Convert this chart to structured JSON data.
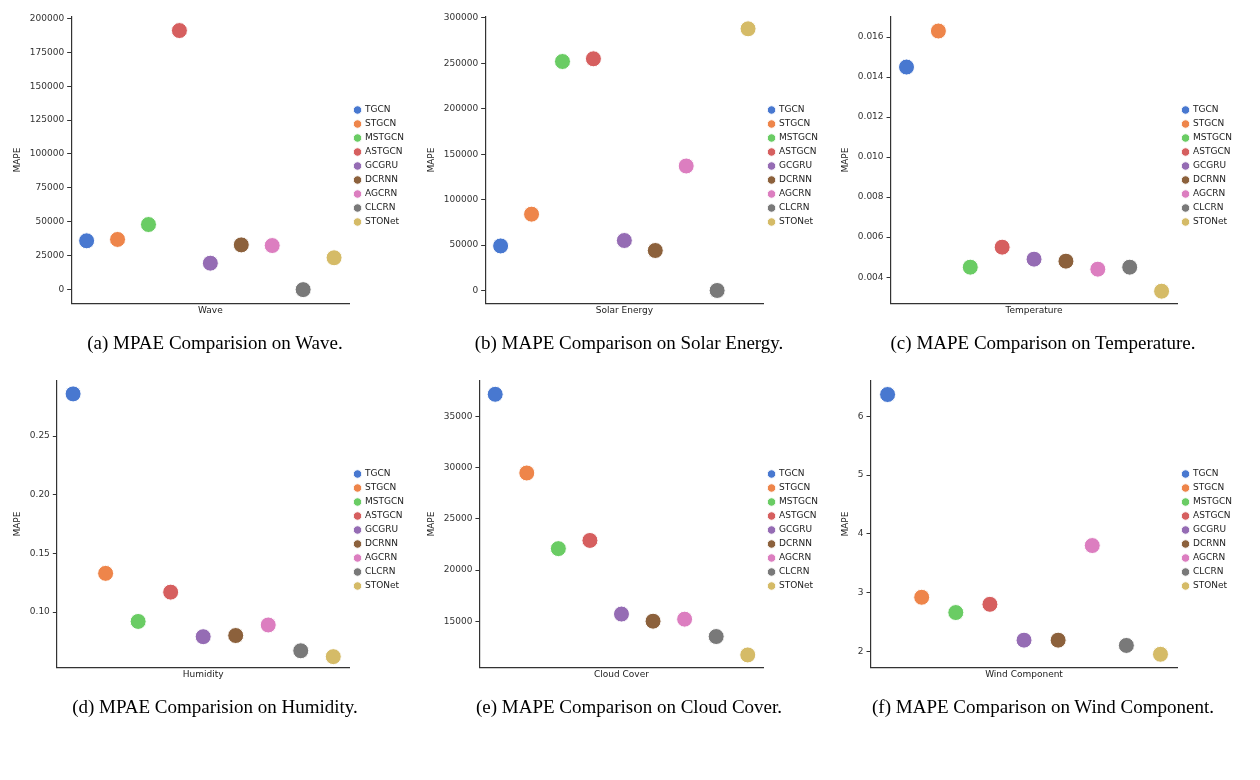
{
  "chart_data": [
    {
      "type": "scatter",
      "xlabel": "Wave",
      "ylabel": "MAPE",
      "categories": [
        null,
        null,
        null,
        null,
        null,
        null,
        null,
        null,
        null
      ],
      "ylim": [
        -10000,
        201000
      ],
      "yticks": [
        0,
        25000,
        50000,
        75000,
        100000,
        125000,
        150000,
        175000,
        200000
      ],
      "tick_labels": "y",
      "legend": "right",
      "marker": "circle",
      "annotations": [
        "(a) MPAE Comparision on Wave."
      ],
      "series": [
        {
          "name": "TGCN",
          "color": "#4878d0",
          "values": [
            36000,
            null,
            null,
            null,
            null,
            null,
            null,
            null,
            null
          ]
        },
        {
          "name": "STGCN",
          "color": "#ee854a",
          "values": [
            null,
            37000,
            null,
            null,
            null,
            null,
            null,
            null,
            null
          ]
        },
        {
          "name": "MSTGCN",
          "color": "#6acc64",
          "values": [
            null,
            null,
            48000,
            null,
            null,
            null,
            null,
            null,
            null
          ]
        },
        {
          "name": "ASTGCN",
          "color": "#d65f5f",
          "values": [
            null,
            null,
            null,
            191000,
            null,
            null,
            null,
            null,
            null
          ]
        },
        {
          "name": "GCGRU",
          "color": "#956cb4",
          "values": [
            null,
            null,
            null,
            null,
            19500,
            null,
            null,
            null,
            null
          ]
        },
        {
          "name": "DCRNN",
          "color": "#8c613c",
          "values": [
            null,
            null,
            null,
            null,
            null,
            33000,
            null,
            null,
            null
          ]
        },
        {
          "name": "AGCRN",
          "color": "#dc7ec0",
          "values": [
            null,
            null,
            null,
            null,
            null,
            null,
            32500,
            null,
            null
          ]
        },
        {
          "name": "CLCRN",
          "color": "#797979",
          "values": [
            null,
            null,
            null,
            null,
            null,
            null,
            null,
            0,
            null
          ]
        },
        {
          "name": "STONet",
          "color": "#d5bb67",
          "values": [
            null,
            null,
            null,
            null,
            null,
            null,
            null,
            null,
            23500
          ]
        }
      ]
    },
    {
      "type": "scatter",
      "xlabel": "Solar Energy",
      "ylabel": "MAPE",
      "categories": [
        null,
        null,
        null,
        null,
        null,
        null,
        null,
        null,
        null
      ],
      "ylim": [
        -14000,
        301000
      ],
      "yticks": [
        0,
        50000,
        100000,
        150000,
        200000,
        250000,
        300000
      ],
      "tick_labels": "y",
      "legend": "right",
      "marker": "circle",
      "annotations": [
        "(b) MAPE Comparison on Solar Energy."
      ],
      "series": [
        {
          "name": "TGCN",
          "color": "#4878d0",
          "values": [
            49000,
            null,
            null,
            null,
            null,
            null,
            null,
            null,
            null
          ]
        },
        {
          "name": "STGCN",
          "color": "#ee854a",
          "values": [
            null,
            84000,
            null,
            null,
            null,
            null,
            null,
            null,
            null
          ]
        },
        {
          "name": "MSTGCN",
          "color": "#6acc64",
          "values": [
            null,
            null,
            252000,
            null,
            null,
            null,
            null,
            null,
            null
          ]
        },
        {
          "name": "ASTGCN",
          "color": "#d65f5f",
          "values": [
            null,
            null,
            null,
            255000,
            null,
            null,
            null,
            null,
            null
          ]
        },
        {
          "name": "GCGRU",
          "color": "#956cb4",
          "values": [
            null,
            null,
            null,
            null,
            55000,
            null,
            null,
            null,
            null
          ]
        },
        {
          "name": "DCRNN",
          "color": "#8c613c",
          "values": [
            null,
            null,
            null,
            null,
            null,
            44000,
            null,
            null,
            null
          ]
        },
        {
          "name": "AGCRN",
          "color": "#dc7ec0",
          "values": [
            null,
            null,
            null,
            null,
            null,
            null,
            137000,
            null,
            null
          ]
        },
        {
          "name": "CLCRN",
          "color": "#797979",
          "values": [
            null,
            null,
            null,
            null,
            null,
            null,
            null,
            0,
            null
          ]
        },
        {
          "name": "STONet",
          "color": "#d5bb67",
          "values": [
            null,
            null,
            null,
            null,
            null,
            null,
            null,
            null,
            288000
          ]
        }
      ]
    },
    {
      "type": "scatter",
      "xlabel": "Temperature",
      "ylabel": "MAPE",
      "categories": [
        null,
        null,
        null,
        null,
        null,
        null,
        null,
        null,
        null
      ],
      "ylim": [
        0.0027,
        0.017
      ],
      "yticks": [
        0.004,
        0.006,
        0.008,
        {
          "value": 0.01,
          "label": "0.010"
        },
        0.012,
        0.014,
        0.016
      ],
      "tick_labels": "y",
      "legend": "right",
      "marker": "circle",
      "annotations": [
        "(c) MAPE Comparison on Temperature."
      ],
      "series": [
        {
          "name": "TGCN",
          "color": "#4878d0",
          "values": [
            0.0145,
            null,
            null,
            null,
            null,
            null,
            null,
            null,
            null
          ]
        },
        {
          "name": "STGCN",
          "color": "#ee854a",
          "values": [
            null,
            0.0163,
            null,
            null,
            null,
            null,
            null,
            null,
            null
          ]
        },
        {
          "name": "MSTGCN",
          "color": "#6acc64",
          "values": [
            null,
            null,
            0.0045,
            null,
            null,
            null,
            null,
            null,
            null
          ]
        },
        {
          "name": "ASTGCN",
          "color": "#d65f5f",
          "values": [
            null,
            null,
            null,
            0.0055,
            null,
            null,
            null,
            null,
            null
          ]
        },
        {
          "name": "GCGRU",
          "color": "#956cb4",
          "values": [
            null,
            null,
            null,
            null,
            0.0049,
            null,
            null,
            null,
            null
          ]
        },
        {
          "name": "DCRNN",
          "color": "#8c613c",
          "values": [
            null,
            null,
            null,
            null,
            null,
            0.0048,
            null,
            null,
            null
          ]
        },
        {
          "name": "AGCRN",
          "color": "#dc7ec0",
          "values": [
            null,
            null,
            null,
            null,
            null,
            null,
            0.0044,
            null,
            null
          ]
        },
        {
          "name": "CLCRN",
          "color": "#797979",
          "values": [
            null,
            null,
            null,
            null,
            null,
            null,
            null,
            0.0045,
            null
          ]
        },
        {
          "name": "STONet",
          "color": "#d5bb67",
          "values": [
            null,
            null,
            null,
            null,
            null,
            null,
            null,
            null,
            0.0033
          ]
        }
      ]
    },
    {
      "type": "scatter",
      "xlabel": "Humidity",
      "ylabel": "MAPE",
      "categories": [
        null,
        null,
        null,
        null,
        null,
        null,
        null,
        null,
        null
      ],
      "ylim": [
        0.053,
        0.297
      ],
      "yticks": [
        {
          "value": 0.1,
          "label": "0.10"
        },
        {
          "value": 0.15,
          "label": "0.15"
        },
        {
          "value": 0.2,
          "label": "0.20"
        },
        0.25
      ],
      "tick_labels": "y",
      "legend": "right",
      "marker": "circle",
      "annotations": [
        "(d) MPAE Comparision on Humidity."
      ],
      "series": [
        {
          "name": "TGCN",
          "color": "#4878d0",
          "values": [
            0.286,
            null,
            null,
            null,
            null,
            null,
            null,
            null,
            null
          ]
        },
        {
          "name": "STGCN",
          "color": "#ee854a",
          "values": [
            null,
            0.133,
            null,
            null,
            null,
            null,
            null,
            null,
            null
          ]
        },
        {
          "name": "MSTGCN",
          "color": "#6acc64",
          "values": [
            null,
            null,
            0.092,
            null,
            null,
            null,
            null,
            null,
            null
          ]
        },
        {
          "name": "ASTGCN",
          "color": "#d65f5f",
          "values": [
            null,
            null,
            null,
            0.117,
            null,
            null,
            null,
            null,
            null
          ]
        },
        {
          "name": "GCGRU",
          "color": "#956cb4",
          "values": [
            null,
            null,
            null,
            null,
            0.079,
            null,
            null,
            null,
            null
          ]
        },
        {
          "name": "DCRNN",
          "color": "#8c613c",
          "values": [
            null,
            null,
            null,
            null,
            null,
            0.08,
            null,
            null,
            null
          ]
        },
        {
          "name": "AGCRN",
          "color": "#dc7ec0",
          "values": [
            null,
            null,
            null,
            null,
            null,
            null,
            0.089,
            null,
            null
          ]
        },
        {
          "name": "CLCRN",
          "color": "#797979",
          "values": [
            null,
            null,
            null,
            null,
            null,
            null,
            null,
            0.067,
            null
          ]
        },
        {
          "name": "STONet",
          "color": "#d5bb67",
          "values": [
            null,
            null,
            null,
            null,
            null,
            null,
            null,
            null,
            0.062
          ]
        }
      ]
    },
    {
      "type": "scatter",
      "xlabel": "Cloud Cover",
      "ylabel": "MAPE",
      "categories": [
        null,
        null,
        null,
        null,
        null,
        null,
        null,
        null,
        null
      ],
      "ylim": [
        10500,
        38500
      ],
      "yticks": [
        15000,
        20000,
        25000,
        30000,
        35000
      ],
      "tick_labels": "y",
      "legend": "right",
      "marker": "circle",
      "annotations": [
        "(e) MAPE Comparison on Cloud Cover."
      ],
      "series": [
        {
          "name": "TGCN",
          "color": "#4878d0",
          "values": [
            37200,
            null,
            null,
            null,
            null,
            null,
            null,
            null,
            null
          ]
        },
        {
          "name": "STGCN",
          "color": "#ee854a",
          "values": [
            null,
            29500,
            null,
            null,
            null,
            null,
            null,
            null,
            null
          ]
        },
        {
          "name": "MSTGCN",
          "color": "#6acc64",
          "values": [
            null,
            null,
            22100,
            null,
            null,
            null,
            null,
            null,
            null
          ]
        },
        {
          "name": "ASTGCN",
          "color": "#d65f5f",
          "values": [
            null,
            null,
            null,
            22900,
            null,
            null,
            null,
            null,
            null
          ]
        },
        {
          "name": "GCGRU",
          "color": "#956cb4",
          "values": [
            null,
            null,
            null,
            null,
            15700,
            null,
            null,
            null,
            null
          ]
        },
        {
          "name": "DCRNN",
          "color": "#8c613c",
          "values": [
            null,
            null,
            null,
            null,
            null,
            15000,
            null,
            null,
            null
          ]
        },
        {
          "name": "AGCRN",
          "color": "#dc7ec0",
          "values": [
            null,
            null,
            null,
            null,
            null,
            null,
            15200,
            null,
            null
          ]
        },
        {
          "name": "CLCRN",
          "color": "#797979",
          "values": [
            null,
            null,
            null,
            null,
            null,
            null,
            null,
            13500,
            null
          ]
        },
        {
          "name": "STONet",
          "color": "#d5bb67",
          "values": [
            null,
            null,
            null,
            null,
            null,
            null,
            null,
            null,
            11700
          ]
        }
      ]
    },
    {
      "type": "scatter",
      "xlabel": "Wind Component",
      "ylabel": "MAPE",
      "categories": [
        null,
        null,
        null,
        null,
        null,
        null,
        null,
        null,
        null
      ],
      "ylim": [
        1.73,
        6.6
      ],
      "yticks": [
        2,
        3,
        4,
        5,
        6
      ],
      "tick_labels": "y",
      "legend": "right",
      "marker": "circle",
      "annotations": [
        "(f) MAPE Comparison on Wind Component."
      ],
      "series": [
        {
          "name": "TGCN",
          "color": "#4878d0",
          "values": [
            6.37,
            null,
            null,
            null,
            null,
            null,
            null,
            null,
            null
          ]
        },
        {
          "name": "STGCN",
          "color": "#ee854a",
          "values": [
            null,
            2.92,
            null,
            null,
            null,
            null,
            null,
            null,
            null
          ]
        },
        {
          "name": "MSTGCN",
          "color": "#6acc64",
          "values": [
            null,
            null,
            2.66,
            null,
            null,
            null,
            null,
            null,
            null
          ]
        },
        {
          "name": "ASTGCN",
          "color": "#d65f5f",
          "values": [
            null,
            null,
            null,
            2.8,
            null,
            null,
            null,
            null,
            null
          ]
        },
        {
          "name": "GCGRU",
          "color": "#956cb4",
          "values": [
            null,
            null,
            null,
            null,
            2.19,
            null,
            null,
            null,
            null
          ]
        },
        {
          "name": "DCRNN",
          "color": "#8c613c",
          "values": [
            null,
            null,
            null,
            null,
            null,
            2.19,
            null,
            null,
            null
          ]
        },
        {
          "name": "AGCRN",
          "color": "#dc7ec0",
          "values": [
            null,
            null,
            null,
            null,
            null,
            null,
            3.8,
            null,
            null
          ]
        },
        {
          "name": "CLCRN",
          "color": "#797979",
          "values": [
            null,
            null,
            null,
            null,
            null,
            null,
            null,
            2.1,
            null
          ]
        },
        {
          "name": "STONet",
          "color": "#d5bb67",
          "values": [
            null,
            null,
            null,
            null,
            null,
            null,
            null,
            null,
            1.95
          ]
        }
      ]
    }
  ]
}
